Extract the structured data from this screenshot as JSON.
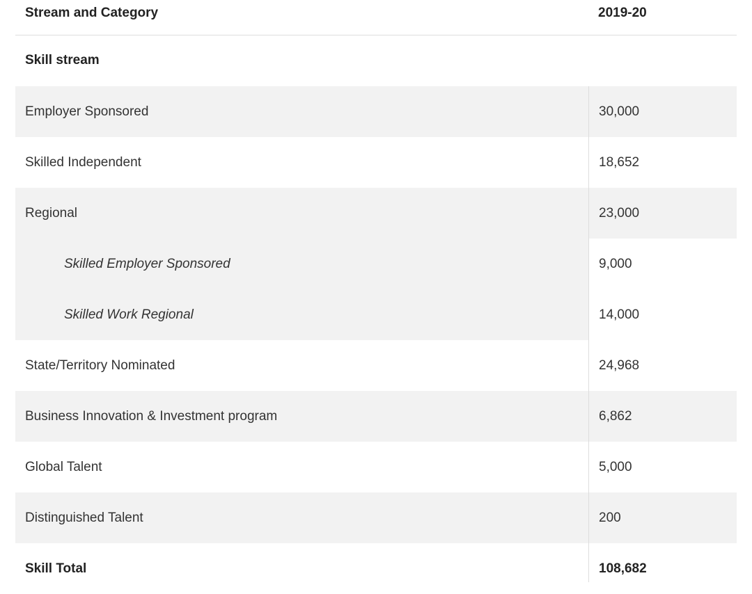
{
  "table": {
    "header": [
      "Stream and Category",
      "2019-20"
    ],
    "section": "Skill stream",
    "rows": [
      {
        "label": "Employer Sponsored",
        "value": "30,000"
      },
      {
        "label": "Skilled Independent",
        "value": "18,652"
      },
      {
        "label": "Regional",
        "value": "23,000",
        "subrows": [
          {
            "label": "Skilled Employer Sponsored",
            "value": "9,000"
          },
          {
            "label": "Skilled Work Regional",
            "value": "14,000"
          }
        ]
      },
      {
        "label": "State/Territory Nominated",
        "value": "24,968"
      },
      {
        "label": "Business Innovation & Investment program",
        "value": "6,862"
      },
      {
        "label": "Global Talent",
        "value": "5,000"
      },
      {
        "label": "Distinguished Talent",
        "value": "200"
      }
    ],
    "total": {
      "label": "Skill Total",
      "value": "108,682"
    }
  }
}
